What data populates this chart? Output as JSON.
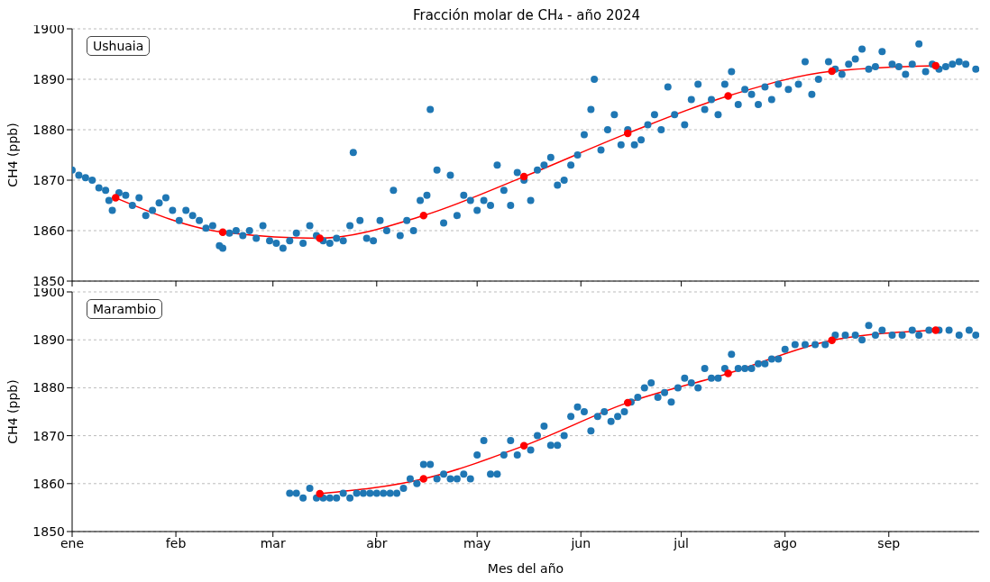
{
  "chart_data": [
    {
      "type": "scatter",
      "title": "Fracción molar de CH₄ - año 2024",
      "ylabel": "CH4 (ppb)",
      "annotations": [
        "Ushuaia"
      ],
      "xlim": [
        "2024-01-01",
        "2024-09-28"
      ],
      "xticks": [
        {
          "value": "2024-01-01",
          "label": null
        },
        {
          "value": "2024-02-01",
          "label": null
        },
        {
          "value": "2024-03-01",
          "label": null
        },
        {
          "value": "2024-04-01",
          "label": null
        },
        {
          "value": "2024-05-01",
          "label": null
        },
        {
          "value": "2024-06-01",
          "label": null
        },
        {
          "value": "2024-07-01",
          "label": null
        },
        {
          "value": "2024-08-01",
          "label": null
        },
        {
          "value": "2024-09-01",
          "label": null
        }
      ],
      "ylim": [
        1850,
        1900
      ],
      "yticks": [
        1850,
        1860,
        1870,
        1880,
        1890,
        1900
      ],
      "grid": "y",
      "tick_labels": "y",
      "series": [
        {
          "type": "scatter",
          "color": "#1f77b4",
          "x": [
            "2024-01-01",
            "2024-01-03",
            "2024-01-05",
            "2024-01-07",
            "2024-01-09",
            "2024-01-11",
            "2024-01-12",
            "2024-01-13",
            "2024-01-15",
            "2024-01-17",
            "2024-01-19",
            "2024-01-21",
            "2024-01-23",
            "2024-01-25",
            "2024-01-27",
            "2024-01-29",
            "2024-01-31",
            "2024-02-02",
            "2024-02-04",
            "2024-02-06",
            "2024-02-08",
            "2024-02-10",
            "2024-02-12",
            "2024-02-14",
            "2024-02-15",
            "2024-02-17",
            "2024-02-19",
            "2024-02-21",
            "2024-02-23",
            "2024-02-25",
            "2024-02-27",
            "2024-02-29",
            "2024-03-02",
            "2024-03-04",
            "2024-03-06",
            "2024-03-08",
            "2024-03-10",
            "2024-03-12",
            "2024-03-14",
            "2024-03-16",
            "2024-03-18",
            "2024-03-20",
            "2024-03-22",
            "2024-03-24",
            "2024-03-25",
            "2024-03-27",
            "2024-03-29",
            "2024-03-31",
            "2024-04-02",
            "2024-04-04",
            "2024-04-06",
            "2024-04-08",
            "2024-04-10",
            "2024-04-12",
            "2024-04-14",
            "2024-04-16",
            "2024-04-17",
            "2024-04-19",
            "2024-04-21",
            "2024-04-23",
            "2024-04-25",
            "2024-04-27",
            "2024-04-29",
            "2024-05-01",
            "2024-05-03",
            "2024-05-05",
            "2024-05-07",
            "2024-05-09",
            "2024-05-11",
            "2024-05-13",
            "2024-05-15",
            "2024-05-17",
            "2024-05-19",
            "2024-05-21",
            "2024-05-23",
            "2024-05-25",
            "2024-05-27",
            "2024-05-29",
            "2024-05-31",
            "2024-06-02",
            "2024-06-04",
            "2024-06-05",
            "2024-06-07",
            "2024-06-09",
            "2024-06-11",
            "2024-06-13",
            "2024-06-15",
            "2024-06-17",
            "2024-06-19",
            "2024-06-21",
            "2024-06-23",
            "2024-06-25",
            "2024-06-27",
            "2024-06-29",
            "2024-07-02",
            "2024-07-04",
            "2024-07-06",
            "2024-07-08",
            "2024-07-10",
            "2024-07-12",
            "2024-07-14",
            "2024-07-16",
            "2024-07-18",
            "2024-07-20",
            "2024-07-22",
            "2024-07-24",
            "2024-07-26",
            "2024-07-28",
            "2024-07-30",
            "2024-08-02",
            "2024-08-05",
            "2024-08-07",
            "2024-08-09",
            "2024-08-11",
            "2024-08-14",
            "2024-08-16",
            "2024-08-18",
            "2024-08-20",
            "2024-08-22",
            "2024-08-24",
            "2024-08-26",
            "2024-08-28",
            "2024-08-30",
            "2024-09-02",
            "2024-09-04",
            "2024-09-06",
            "2024-09-08",
            "2024-09-10",
            "2024-09-12",
            "2024-09-14",
            "2024-09-16",
            "2024-09-18",
            "2024-09-20",
            "2024-09-22",
            "2024-09-24",
            "2024-09-27"
          ],
          "values": [
            1872,
            1871,
            1870.5,
            1870,
            1868.5,
            1868,
            1866,
            1864,
            1867.5,
            1867,
            1865,
            1866.5,
            1863,
            1864,
            1865.5,
            1866.5,
            1864,
            1862,
            1864,
            1863,
            1862,
            1860.5,
            1861,
            1857,
            1856.5,
            1859.5,
            1860,
            1859,
            1860,
            1858.5,
            1861,
            1858,
            1857.5,
            1856.5,
            1858,
            1859.5,
            1857.5,
            1861,
            1859,
            1858,
            1857.5,
            1858.5,
            1858,
            1861,
            1875.5,
            1862,
            1858.5,
            1858,
            1862,
            1860,
            1868,
            1859,
            1862,
            1860,
            1866,
            1867,
            1884,
            1872,
            1861.5,
            1871,
            1863,
            1867,
            1866,
            1864,
            1866,
            1865,
            1873,
            1868,
            1865,
            1871.5,
            1870,
            1866,
            1872,
            1873,
            1874.5,
            1869,
            1870,
            1873,
            1875,
            1879,
            1884,
            1890,
            1876,
            1880,
            1883,
            1877,
            1880,
            1877,
            1878,
            1881,
            1883,
            1880,
            1888.5,
            1883,
            1881,
            1886,
            1889,
            1884,
            1886,
            1883,
            1889,
            1891.5,
            1885,
            1888,
            1887,
            1885,
            1888.5,
            1886,
            1889,
            1888,
            1889,
            1893.5,
            1887,
            1890,
            1893.5,
            1892,
            1891,
            1893,
            1894,
            1896,
            1892,
            1892.5,
            1895.5,
            1893,
            1892.5,
            1891,
            1893,
            1897,
            1891.5,
            1893,
            1892,
            1892.5,
            1893,
            1893.5,
            1893,
            1892
          ]
        },
        {
          "type": "line",
          "color": "#ff0000",
          "marker": "circle",
          "x": [
            "2024-01-14",
            "2024-02-15",
            "2024-03-15",
            "2024-04-15",
            "2024-05-15",
            "2024-06-15",
            "2024-07-15",
            "2024-08-15",
            "2024-09-15"
          ],
          "values": [
            1866.5,
            1859.7,
            1858.5,
            1863,
            1870.7,
            1879.3,
            1886.7,
            1891.6,
            1892.7
          ]
        }
      ]
    },
    {
      "type": "scatter",
      "xlabel": "Mes del año",
      "ylabel": "CH4 (ppb)",
      "annotations": [
        "Marambio"
      ],
      "xlim": [
        "2024-01-01",
        "2024-09-28"
      ],
      "xticks": [
        {
          "value": "2024-01-01",
          "label": "ene"
        },
        {
          "value": "2024-02-01",
          "label": "feb"
        },
        {
          "value": "2024-03-01",
          "label": "mar"
        },
        {
          "value": "2024-04-01",
          "label": "abr"
        },
        {
          "value": "2024-05-01",
          "label": "may"
        },
        {
          "value": "2024-06-01",
          "label": "jun"
        },
        {
          "value": "2024-07-01",
          "label": "jul"
        },
        {
          "value": "2024-08-01",
          "label": "ago"
        },
        {
          "value": "2024-09-01",
          "label": "sep"
        }
      ],
      "ylim": [
        1850,
        1900
      ],
      "yticks": [
        1850,
        1860,
        1870,
        1880,
        1890,
        1900
      ],
      "grid": "y",
      "series": [
        {
          "type": "scatter",
          "color": "#1f77b4",
          "x": [
            "2024-03-06",
            "2024-03-08",
            "2024-03-10",
            "2024-03-12",
            "2024-03-14",
            "2024-03-16",
            "2024-03-18",
            "2024-03-20",
            "2024-03-22",
            "2024-03-24",
            "2024-03-26",
            "2024-03-28",
            "2024-03-30",
            "2024-04-01",
            "2024-04-03",
            "2024-04-05",
            "2024-04-07",
            "2024-04-09",
            "2024-04-11",
            "2024-04-13",
            "2024-04-15",
            "2024-04-17",
            "2024-04-19",
            "2024-04-21",
            "2024-04-23",
            "2024-04-25",
            "2024-04-27",
            "2024-04-29",
            "2024-05-01",
            "2024-05-03",
            "2024-05-05",
            "2024-05-07",
            "2024-05-09",
            "2024-05-11",
            "2024-05-13",
            "2024-05-15",
            "2024-05-17",
            "2024-05-19",
            "2024-05-21",
            "2024-05-23",
            "2024-05-25",
            "2024-05-27",
            "2024-05-29",
            "2024-05-31",
            "2024-06-02",
            "2024-06-04",
            "2024-06-06",
            "2024-06-08",
            "2024-06-10",
            "2024-06-12",
            "2024-06-14",
            "2024-06-16",
            "2024-06-18",
            "2024-06-20",
            "2024-06-22",
            "2024-06-24",
            "2024-06-26",
            "2024-06-28",
            "2024-06-30",
            "2024-07-02",
            "2024-07-04",
            "2024-07-06",
            "2024-07-08",
            "2024-07-10",
            "2024-07-12",
            "2024-07-14",
            "2024-07-16",
            "2024-07-18",
            "2024-07-20",
            "2024-07-22",
            "2024-07-24",
            "2024-07-26",
            "2024-07-28",
            "2024-07-30",
            "2024-08-01",
            "2024-08-04",
            "2024-08-07",
            "2024-08-10",
            "2024-08-13",
            "2024-08-16",
            "2024-08-19",
            "2024-08-22",
            "2024-08-24",
            "2024-08-26",
            "2024-08-28",
            "2024-08-30",
            "2024-09-02",
            "2024-09-05",
            "2024-09-08",
            "2024-09-10",
            "2024-09-13",
            "2024-09-16",
            "2024-09-19",
            "2024-09-22",
            "2024-09-25",
            "2024-09-27"
          ],
          "values": [
            1858,
            1858,
            1857,
            1859,
            1857,
            1857,
            1857,
            1857,
            1858,
            1857,
            1858,
            1858,
            1858,
            1858,
            1858,
            1858,
            1858,
            1859,
            1861,
            1860,
            1864,
            1864,
            1861,
            1862,
            1861,
            1861,
            1862,
            1861,
            1866,
            1869,
            1862,
            1862,
            1866,
            1869,
            1866,
            null,
            1867,
            1870,
            1872,
            1868,
            1868,
            1870,
            1874,
            1876,
            1875,
            1871,
            1874,
            1875,
            1873,
            1874,
            1875,
            1877,
            1878,
            1880,
            1881,
            1878,
            1879,
            1877,
            1880,
            1882,
            1881,
            1880,
            1884,
            1882,
            1882,
            1884,
            1887,
            1884,
            1884,
            1884,
            1885,
            1885,
            1886,
            1886,
            1888,
            1889,
            1889,
            1889,
            1889,
            1891,
            1891,
            1891,
            1890,
            1893,
            1891,
            1892,
            1891,
            1891,
            1892,
            1891,
            1892,
            1892,
            1892,
            1891,
            1892,
            1891
          ]
        },
        {
          "type": "line",
          "color": "#ff0000",
          "marker": "circle",
          "x": [
            "2024-03-15",
            "2024-04-15",
            "2024-05-15",
            "2024-06-15",
            "2024-07-15",
            "2024-08-15",
            "2024-09-15"
          ],
          "values": [
            1857.9,
            1861,
            1867.9,
            1876.9,
            1883,
            1889.9,
            1892
          ]
        }
      ]
    }
  ]
}
